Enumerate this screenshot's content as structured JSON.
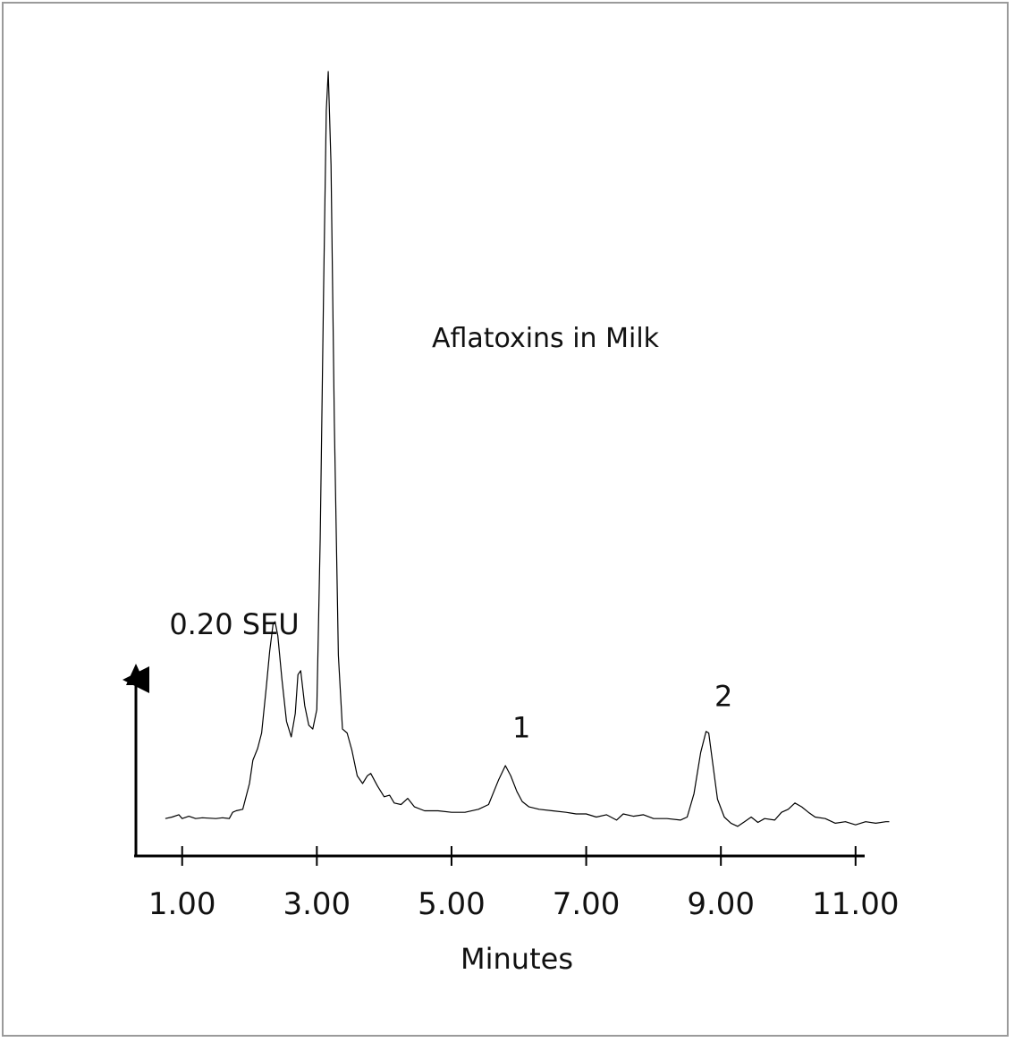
{
  "chart_data": {
    "type": "line",
    "title": "Aflatoxins in Milk",
    "xlabel": "Minutes",
    "y_scale_label": "0.20 SEU",
    "x_ticks": [
      1.0,
      3.0,
      5.0,
      7.0,
      9.0,
      11.0
    ],
    "x_tick_labels": [
      "1.00",
      "3.00",
      "5.00",
      "7.00",
      "9.00",
      "11.00"
    ],
    "xlim": [
      0.3,
      11.6
    ],
    "ylim": [
      0,
      1.0
    ],
    "peak_labels": [
      {
        "label": "1",
        "x": 5.8,
        "y": 0.11
      },
      {
        "label": "2",
        "x": 8.8,
        "y": 0.15
      }
    ],
    "series": [
      {
        "points": [
          [
            0.75,
            0.04
          ],
          [
            0.85,
            0.042
          ],
          [
            0.95,
            0.045
          ],
          [
            1.0,
            0.04
          ],
          [
            1.1,
            0.043
          ],
          [
            1.2,
            0.04
          ],
          [
            1.3,
            0.041
          ],
          [
            1.5,
            0.04
          ],
          [
            1.6,
            0.041
          ],
          [
            1.7,
            0.04
          ],
          [
            1.75,
            0.048
          ],
          [
            1.8,
            0.05
          ],
          [
            1.9,
            0.052
          ],
          [
            2.0,
            0.085
          ],
          [
            2.05,
            0.115
          ],
          [
            2.12,
            0.13
          ],
          [
            2.18,
            0.15
          ],
          [
            2.25,
            0.21
          ],
          [
            2.3,
            0.255
          ],
          [
            2.35,
            0.29
          ],
          [
            2.38,
            0.293
          ],
          [
            2.42,
            0.275
          ],
          [
            2.48,
            0.22
          ],
          [
            2.55,
            0.165
          ],
          [
            2.62,
            0.145
          ],
          [
            2.68,
            0.175
          ],
          [
            2.72,
            0.225
          ],
          [
            2.76,
            0.23
          ],
          [
            2.82,
            0.185
          ],
          [
            2.88,
            0.16
          ],
          [
            2.94,
            0.155
          ],
          [
            3.0,
            0.18
          ],
          [
            3.05,
            0.4
          ],
          [
            3.1,
            0.72
          ],
          [
            3.14,
            0.95
          ],
          [
            3.17,
            1.0
          ],
          [
            3.21,
            0.88
          ],
          [
            3.26,
            0.55
          ],
          [
            3.32,
            0.25
          ],
          [
            3.38,
            0.155
          ],
          [
            3.45,
            0.15
          ],
          [
            3.52,
            0.128
          ],
          [
            3.6,
            0.095
          ],
          [
            3.68,
            0.085
          ],
          [
            3.75,
            0.095
          ],
          [
            3.8,
            0.098
          ],
          [
            3.9,
            0.082
          ],
          [
            4.0,
            0.068
          ],
          [
            4.08,
            0.07
          ],
          [
            4.15,
            0.06
          ],
          [
            4.25,
            0.058
          ],
          [
            4.35,
            0.066
          ],
          [
            4.45,
            0.055
          ],
          [
            4.6,
            0.05
          ],
          [
            4.8,
            0.05
          ],
          [
            5.0,
            0.048
          ],
          [
            5.2,
            0.048
          ],
          [
            5.4,
            0.052
          ],
          [
            5.55,
            0.058
          ],
          [
            5.7,
            0.09
          ],
          [
            5.8,
            0.108
          ],
          [
            5.88,
            0.095
          ],
          [
            5.97,
            0.075
          ],
          [
            6.05,
            0.062
          ],
          [
            6.15,
            0.055
          ],
          [
            6.3,
            0.052
          ],
          [
            6.5,
            0.05
          ],
          [
            6.7,
            0.048
          ],
          [
            6.85,
            0.046
          ],
          [
            7.0,
            0.046
          ],
          [
            7.15,
            0.042
          ],
          [
            7.3,
            0.045
          ],
          [
            7.45,
            0.038
          ],
          [
            7.55,
            0.046
          ],
          [
            7.7,
            0.043
          ],
          [
            7.85,
            0.045
          ],
          [
            8.0,
            0.04
          ],
          [
            8.2,
            0.04
          ],
          [
            8.4,
            0.038
          ],
          [
            8.5,
            0.042
          ],
          [
            8.6,
            0.072
          ],
          [
            8.7,
            0.125
          ],
          [
            8.78,
            0.152
          ],
          [
            8.82,
            0.15
          ],
          [
            8.88,
            0.11
          ],
          [
            8.95,
            0.065
          ],
          [
            9.05,
            0.042
          ],
          [
            9.15,
            0.034
          ],
          [
            9.25,
            0.03
          ],
          [
            9.35,
            0.036
          ],
          [
            9.45,
            0.042
          ],
          [
            9.55,
            0.035
          ],
          [
            9.65,
            0.04
          ],
          [
            9.8,
            0.038
          ],
          [
            9.9,
            0.048
          ],
          [
            10.0,
            0.052
          ],
          [
            10.1,
            0.06
          ],
          [
            10.2,
            0.055
          ],
          [
            10.3,
            0.048
          ],
          [
            10.4,
            0.042
          ],
          [
            10.55,
            0.04
          ],
          [
            10.7,
            0.034
          ],
          [
            10.85,
            0.036
          ],
          [
            11.0,
            0.032
          ],
          [
            11.15,
            0.036
          ],
          [
            11.3,
            0.034
          ],
          [
            11.45,
            0.036
          ],
          [
            11.5,
            0.036
          ]
        ]
      }
    ]
  }
}
